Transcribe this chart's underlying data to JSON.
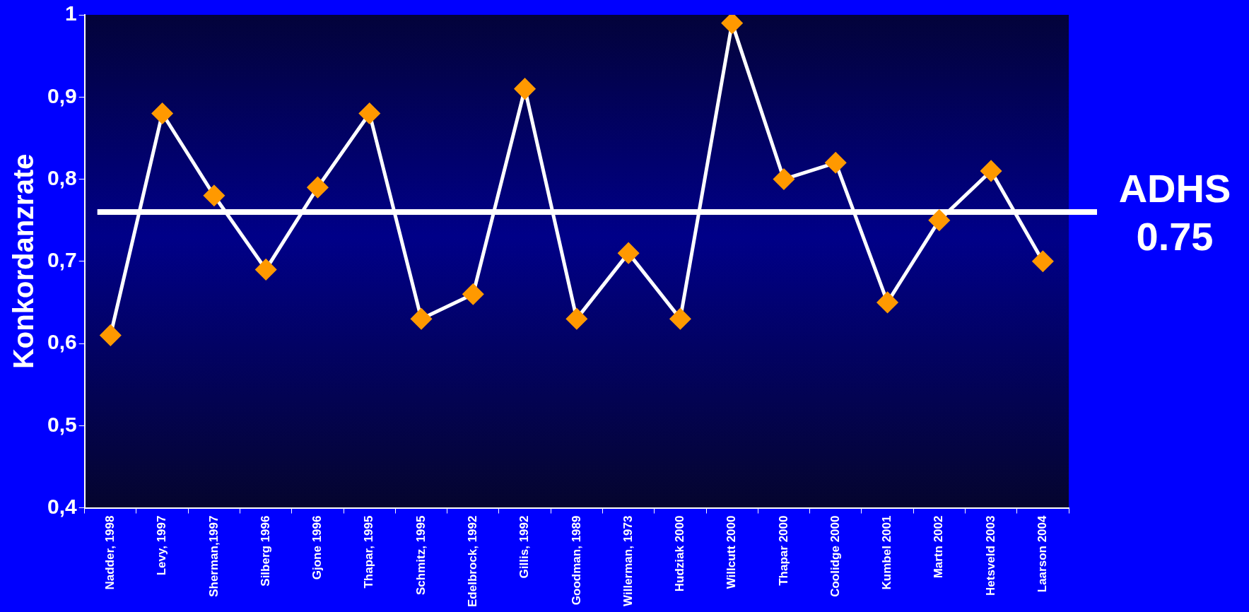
{
  "chart_data": {
    "type": "line",
    "ylabel": "Konkordanzrate",
    "categories": [
      "Nadder, 1998",
      "Levy, 1997",
      "Sherman,1997",
      "Silberg 1996",
      "Gjone 1996",
      "Thapar, 1995",
      "Schmitz, 1995",
      "Edelbrock, 1992",
      "Gillis, 1992",
      "Goodman, 1989",
      "Willerman, 1973",
      "Hudziak 2000",
      "Willcutt 2000",
      "Thapar 2000",
      "Coolidge 2000",
      "Kumbel 2001",
      "Martn 2002",
      "Hetsveld 2003",
      "Laarson 2004"
    ],
    "series": [
      {
        "color": "#ffffff",
        "colors": [
          "#ff9900",
          "#ff9900",
          "#ff9900",
          "#ff9900",
          "#ff9900",
          "#ff9900",
          "#ff9900",
          "#ff9900",
          "#ff9900",
          "#ff9900",
          "#ff9900",
          "#ff9900",
          "#ff9900",
          "#ff9900",
          "#ff9900",
          "#ff9900",
          "#ff9900",
          "#ff9900",
          "#ff9900"
        ],
        "values": [
          0.61,
          0.88,
          0.78,
          0.69,
          0.79,
          0.88,
          0.63,
          0.66,
          0.91,
          0.63,
          0.71,
          0.63,
          0.99,
          0.8,
          0.82,
          0.65,
          0.75,
          0.81,
          0.7
        ]
      }
    ],
    "ylim": [
      0.4,
      1
    ],
    "yticks": [
      {
        "value": 0.4,
        "label": "0,4"
      },
      {
        "value": 0.5,
        "label": "0,5"
      },
      {
        "value": 0.6,
        "label": "0,6"
      },
      {
        "value": 0.7,
        "label": "0,7"
      },
      {
        "value": 0.8,
        "label": "0,8"
      },
      {
        "value": 0.9,
        "label": "0,9"
      },
      {
        "value": 1,
        "label": "1"
      }
    ],
    "grid": false,
    "legend": false,
    "marker": "diamond",
    "line_style": "solid",
    "ref_lines": [
      {
        "axis": "y",
        "value": 0.76,
        "label": "ADHS 0.75",
        "color": "#ffffff"
      }
    ]
  }
}
